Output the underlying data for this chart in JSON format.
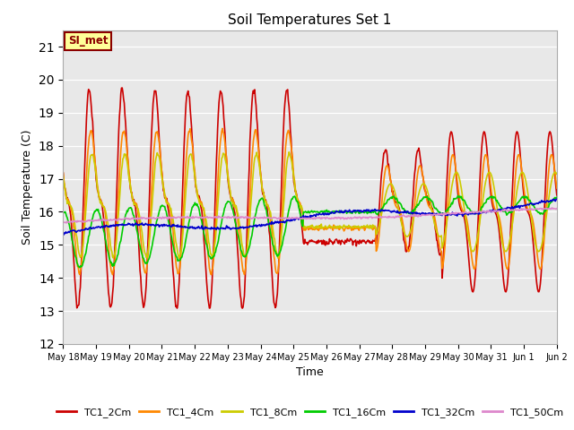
{
  "title": "Soil Temperatures Set 1",
  "xlabel": "Time",
  "ylabel": "Soil Temperature (C)",
  "ylim": [
    12.0,
    21.5
  ],
  "yticks": [
    12.0,
    13.0,
    14.0,
    15.0,
    16.0,
    17.0,
    18.0,
    19.0,
    20.0,
    21.0
  ],
  "bg_color": "#e8e8e8",
  "fig_color": "#ffffff",
  "annotation_label": "SI_met",
  "annotation_color": "#8B0000",
  "annotation_bg": "#ffff99",
  "series_order": [
    "TC1_2Cm",
    "TC1_4Cm",
    "TC1_8Cm",
    "TC1_16Cm",
    "TC1_32Cm",
    "TC1_50Cm"
  ],
  "series": {
    "TC1_2Cm": {
      "color": "#cc0000",
      "lw": 1.2
    },
    "TC1_4Cm": {
      "color": "#ff8800",
      "lw": 1.2
    },
    "TC1_8Cm": {
      "color": "#cccc00",
      "lw": 1.2
    },
    "TC1_16Cm": {
      "color": "#00cc00",
      "lw": 1.2
    },
    "TC1_32Cm": {
      "color": "#0000cc",
      "lw": 1.2
    },
    "TC1_50Cm": {
      "color": "#dd88cc",
      "lw": 1.2
    }
  },
  "x_day_labels": [
    "May 18",
    "May 19",
    "May 20",
    "May 21",
    "May 22",
    "May 23",
    "May 24",
    "May 25",
    "May 26",
    "May 27",
    "May 28",
    "May 29",
    "May 30",
    "May 31",
    "Jun 1",
    "Jun 2"
  ],
  "x_days": [
    0,
    1,
    2,
    3,
    4,
    5,
    6,
    7,
    8,
    9,
    10,
    11,
    12,
    13,
    14,
    15
  ],
  "n_days": 15,
  "pts_per_day": 48
}
